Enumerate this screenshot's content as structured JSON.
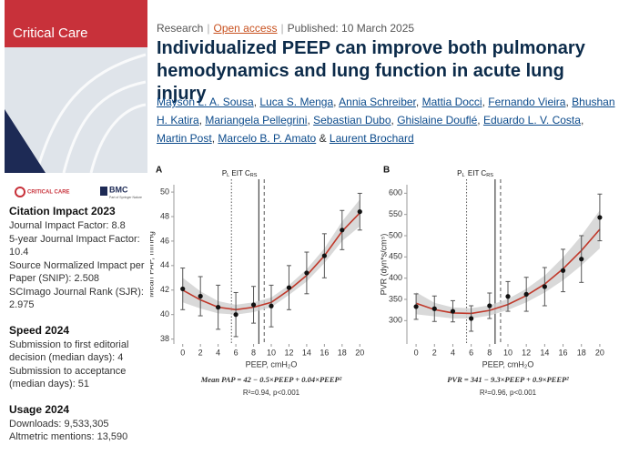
{
  "cover": {
    "title": "Critical Care"
  },
  "logos": {
    "journal": "CRITICAL CARE",
    "publisher": "BMC",
    "publisher_note": "Part of Springer Nature"
  },
  "sidebar": [
    {
      "heading": "Citation Impact 2023",
      "items": [
        "Journal Impact Factor: 8.8",
        "5-year Journal Impact Factor: 10.4",
        "Source Normalized Impact per Paper (SNIP): 2.508",
        "SCImago Journal Rank (SJR): 2.975"
      ]
    },
    {
      "heading": "Speed 2024",
      "items": [
        "Submission to first editorial decision (median days): 4",
        "Submission to acceptance (median days): 51"
      ]
    },
    {
      "heading": "Usage 2024",
      "items": [
        "Downloads: 9,533,305",
        "Altmetric mentions: 13,590"
      ]
    }
  ],
  "header": {
    "type": "Research",
    "access": "Open access",
    "published": "Published: 10 March 2025",
    "separator": "|"
  },
  "article": {
    "title": "Individualized PEEP can improve both pulmonary hemodynamics and lung function in acute lung injury",
    "authors": [
      "Mayson L. A. Sousa",
      "Luca S. Menga",
      "Annia Schreiber",
      "Mattia Docci",
      "Fernando Vieira",
      "Bhushan H. Katira",
      "Mariangela Pellegrini",
      "Sebastian Dubo",
      "Ghislaine Douflé",
      "Eduardo L. V. Costa",
      "Martin Post",
      "Marcelo B. P. Amato",
      "Laurent Brochard"
    ],
    "author_joiner": ",",
    "author_final_joiner": "&"
  },
  "chart_data": [
    {
      "type": "scatter",
      "panel": "A",
      "xlabel": "PEEP, cmH₂O",
      "ylabel": "Mean PAP, mmHg",
      "x": [
        0,
        2,
        4,
        6,
        8,
        10,
        12,
        14,
        16,
        18,
        20
      ],
      "values": [
        42.1,
        41.5,
        40.6,
        40.0,
        40.8,
        40.7,
        42.2,
        43.4,
        44.8,
        46.9,
        48.4
      ],
      "errors": [
        1.7,
        1.6,
        1.8,
        1.8,
        1.5,
        1.7,
        1.8,
        1.7,
        1.8,
        1.6,
        1.5
      ],
      "color": "#111111",
      "fit": {
        "values": [
          42.0,
          41.2,
          40.6,
          40.4,
          40.6,
          41.0,
          42.0,
          43.2,
          44.8,
          46.8,
          48.3
        ],
        "lower": [
          41.0,
          40.5,
          40.1,
          40.0,
          40.2,
          40.6,
          41.6,
          42.7,
          44.2,
          46.0,
          47.2
        ],
        "upper": [
          43.0,
          41.9,
          41.1,
          40.8,
          41.0,
          41.4,
          42.4,
          43.7,
          45.4,
          47.6,
          49.4
        ],
        "color": "#c0392b",
        "band_color": "#cfcfcf"
      },
      "annotations": [
        {
          "label": "P",
          "sub": "L",
          "x": 5.5,
          "style": "dotted"
        },
        {
          "label": "EIT C",
          "sub": "RS",
          "x": 8.6,
          "style": "solid"
        },
        {
          "x": 9.2,
          "style": "dashed"
        }
      ],
      "formula": "Mean PAP = 42 − 0.5×PEEP + 0.04×PEEP²",
      "fit_stats": "R²=0.94, p<0.001",
      "xlim": [
        -1,
        21
      ],
      "xticks": [
        0,
        2,
        4,
        6,
        8,
        10,
        12,
        14,
        16,
        18,
        20
      ],
      "ylim": [
        37.6,
        50.6
      ],
      "yticks": [
        38,
        40,
        42,
        44,
        46,
        48,
        50
      ],
      "grid": false
    },
    {
      "type": "scatter",
      "panel": "B",
      "xlabel": "PEEP, cmH₂O",
      "ylabel": "PVR (dyn*s/cm⁵)",
      "x": [
        0,
        2,
        4,
        6,
        8,
        10,
        12,
        14,
        16,
        18,
        20
      ],
      "values": [
        333,
        328,
        322,
        305,
        335,
        357,
        362,
        380,
        418,
        445,
        543
      ],
      "errors": [
        30,
        30,
        25,
        30,
        30,
        35,
        40,
        45,
        50,
        55,
        55
      ],
      "color": "#111111",
      "fit": {
        "values": [
          341,
          326,
          318,
          317,
          324,
          338,
          359,
          386,
          422,
          465,
          515
        ],
        "lower": [
          315,
          310,
          305,
          305,
          312,
          325,
          343,
          366,
          395,
          430,
          470
        ],
        "upper": [
          367,
          342,
          331,
          329,
          336,
          351,
          375,
          406,
          449,
          500,
          560
        ],
        "color": "#c0392b",
        "band_color": "#cfcfcf"
      },
      "annotations": [
        {
          "label": "P",
          "sub": "L",
          "x": 5.5,
          "style": "dotted"
        },
        {
          "label": "EIT C",
          "sub": "RS",
          "x": 8.6,
          "style": "solid"
        },
        {
          "x": 9.2,
          "style": "dashed"
        }
      ],
      "formula": "PVR = 341 − 9.3×PEEP + 0.9×PEEP²",
      "fit_stats": "R²=0.96, p<0.001",
      "xlim": [
        -1,
        21
      ],
      "xticks": [
        0,
        2,
        4,
        6,
        8,
        10,
        12,
        14,
        16,
        18,
        20
      ],
      "ylim": [
        245,
        620
      ],
      "yticks": [
        300,
        350,
        400,
        450,
        500,
        550,
        600
      ],
      "grid": false
    }
  ]
}
